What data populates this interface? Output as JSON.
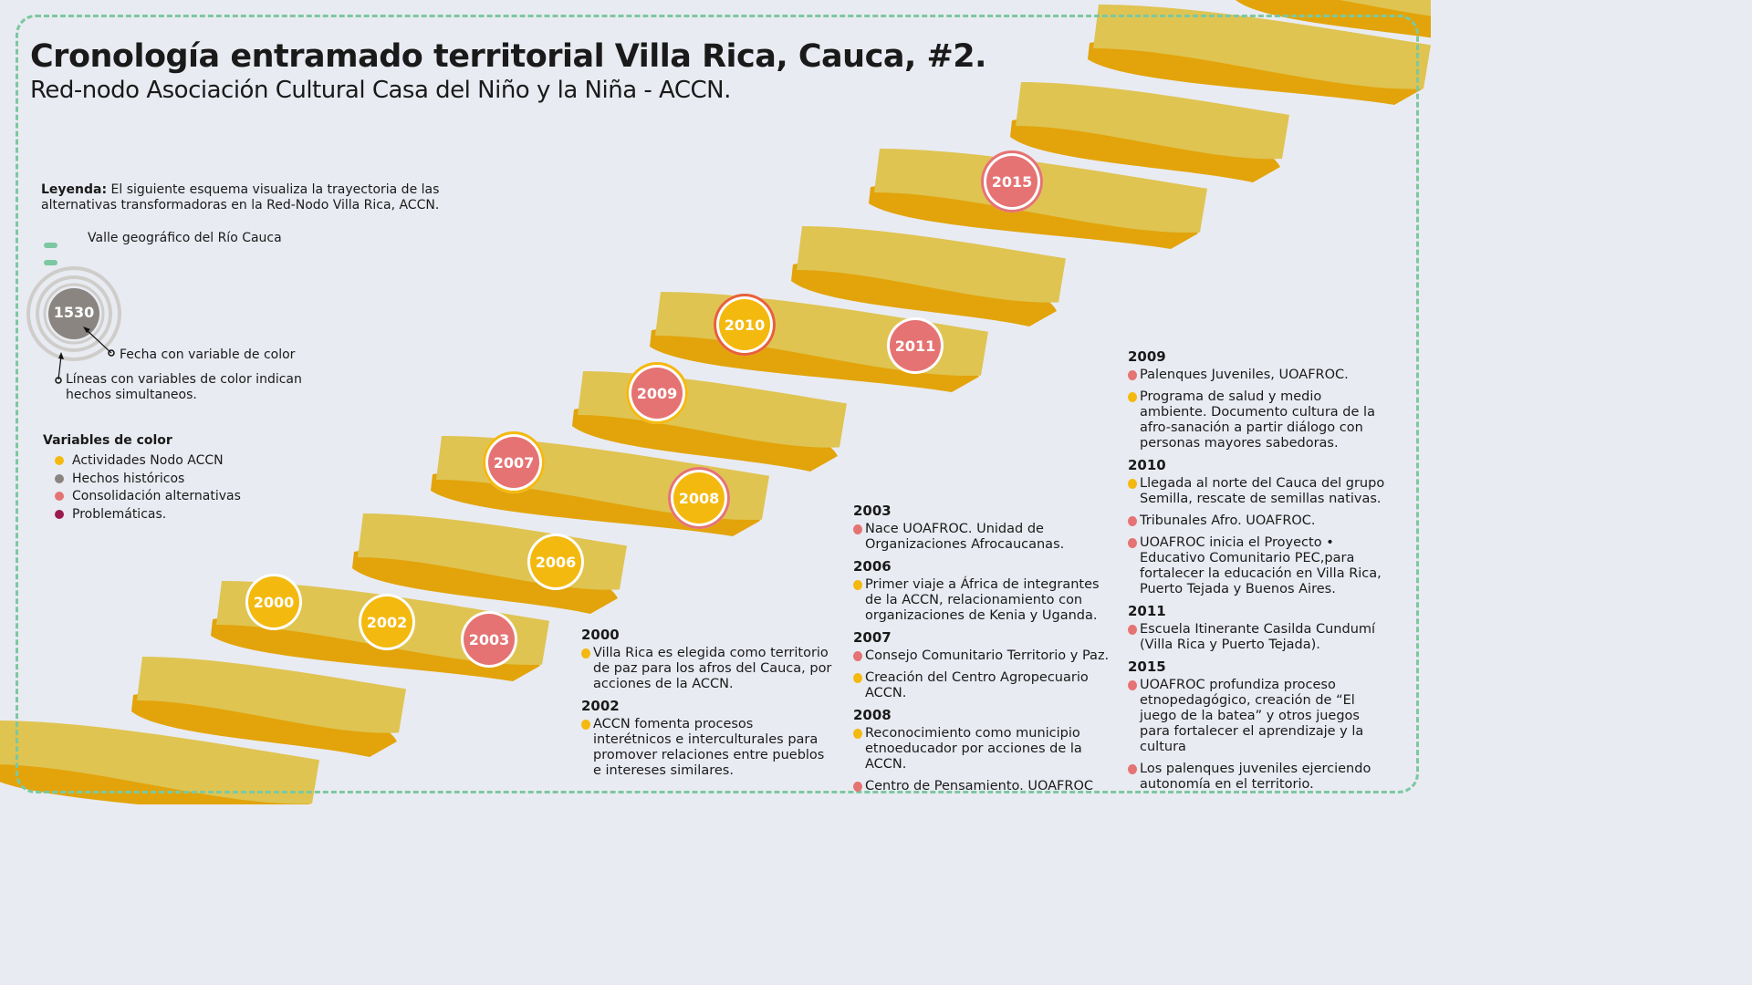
{
  "header": {
    "title": "Cronología entramado territorial Villa Rica, Cauca, #2.",
    "subtitle": "Red-nodo Asociación Cultural Casa del Niño y la Niña - ACCN."
  },
  "legend": {
    "label": "Leyenda:",
    "text_line1": " El siguiente esquema visualiza la trayectoria de las",
    "text_line2": "alternativas transformadoras en la Red-Nodo Villa Rica, ACCN.",
    "valley_label": "Valle geográfico del Río Cauca",
    "example_year": "1530",
    "date_note": "Fecha con variable de color",
    "lines_note_1": "Líneas con variables de color indican",
    "lines_note_2": "hechos simultaneos.",
    "color_vars_title": "Variables de color",
    "color_vars": [
      {
        "label": "Actividades Nodo ACCN",
        "color": "#f4b90f"
      },
      {
        "label": "Hechos históricos",
        "color": "#8a8580"
      },
      {
        "label": "Consolidación alternativas",
        "color": "#e57373"
      },
      {
        "label": "Problemáticas.",
        "color": "#9b1b50"
      }
    ]
  },
  "colors": {
    "ribbon_light": "#dfc452",
    "ribbon_dark": "#e2a40a",
    "valley_border": "#7cc8a0",
    "background": "#e9ebf2"
  },
  "year_markers": [
    {
      "year": "2000",
      "fill": "#f4b90f",
      "ring": "#ffffff"
    },
    {
      "year": "2002",
      "fill": "#f4b90f",
      "ring": "#ffffff"
    },
    {
      "year": "2003",
      "fill": "#e57373",
      "ring": "#ffffff"
    },
    {
      "year": "2006",
      "fill": "#f4b90f",
      "ring": "#ffffff"
    },
    {
      "year": "2007",
      "fill": "#e57373",
      "ring": "#f4b90f"
    },
    {
      "year": "2008",
      "fill": "#f4b90f",
      "ring": "#e57373"
    },
    {
      "year": "2009",
      "fill": "#e57373",
      "ring": "#f4b90f"
    },
    {
      "year": "2010",
      "fill": "#f4b90f",
      "ring": "#e8603a"
    },
    {
      "year": "2011",
      "fill": "#e57373",
      "ring": "#ffffff"
    },
    {
      "year": "2015",
      "fill": "#e57373",
      "ring": "#e57373"
    }
  ],
  "events": {
    "col1": [
      {
        "year": "2000",
        "items": [
          {
            "color": "#f4b90f",
            "text": "Villa Rica es elegida como territorio de paz para los afros del Cauca, por acciones de la ACCN."
          }
        ]
      },
      {
        "year": "2002",
        "items": [
          {
            "color": "#f4b90f",
            "text": "ACCN fomenta procesos interétnicos e interculturales para promover relaciones entre pueblos e intereses similares."
          }
        ]
      }
    ],
    "col2": [
      {
        "year": "2003",
        "items": [
          {
            "color": "#e57373",
            "text": "Nace UOAFROC. Unidad de Organizaciones Afrocaucanas."
          }
        ]
      },
      {
        "year": "2006",
        "items": [
          {
            "color": "#f4b90f",
            "text": "Primer viaje a África de  integrantes de la ACCN, relacionamiento con organizaciones de Kenia y Uganda."
          }
        ]
      },
      {
        "year": "2007",
        "items": [
          {
            "color": "#e57373",
            "text": "Consejo Comunitario Territorio y Paz."
          },
          {
            "color": "#f4b90f",
            "text": "Creación del Centro Agropecuario ACCN."
          }
        ]
      },
      {
        "year": "2008",
        "items": [
          {
            "color": "#f4b90f",
            "text": "Reconocimiento como municipio etnoeducador por acciones de la ACCN."
          },
          {
            "color": "#e57373",
            "text": "Centro de Pensamiento. UOAFROC"
          }
        ]
      }
    ],
    "col3": [
      {
        "year": "2009",
        "items": [
          {
            "color": "#e57373",
            "text": "Palenques Juveniles, UOAFROC."
          },
          {
            "color": "#f4b90f",
            "text": "Programa de salud y medio ambiente. Documento cultura de la afro-sanación a partir diálogo con personas mayores sabedoras."
          }
        ]
      },
      {
        "year": "2010",
        "items": [
          {
            "color": "#f4b90f",
            "text": "Llegada al norte del Cauca del grupo Semilla, rescate de semillas nativas."
          },
          {
            "color": "#e57373",
            "text": "Tribunales Afro. UOAFROC."
          },
          {
            "color": "#e57373",
            "text": "UOAFROC inicia el Proyecto • Educativo Comunitario PEC,para fortalecer la educación en Villa Rica, Puerto Tejada y Buenos Aires."
          }
        ]
      },
      {
        "year": "2011",
        "items": [
          {
            "color": "#e57373",
            "text": "Escuela Itinerante Casilda Cundumí (Villa Rica y Puerto Tejada)."
          }
        ]
      },
      {
        "year": "2015",
        "items": [
          {
            "color": "#e57373",
            "text": "UOAFROC profundiza proceso etnopedagógico, creación de “El juego de la batea” y otros juegos para fortalecer el aprendizaje y la cultura"
          },
          {
            "color": "#e57373",
            "text": "Los palenques juveniles ejerciendo autonomía en el territorio."
          }
        ]
      }
    ]
  }
}
